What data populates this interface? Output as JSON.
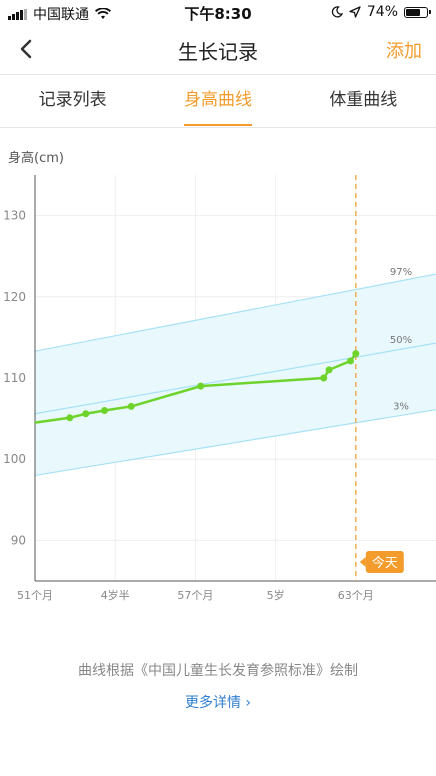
{
  "status_bar": {
    "carrier": "中国联通",
    "time": "下午8:30",
    "battery": "74%",
    "battery_level": 0.74
  },
  "navbar": {
    "title": "生长记录",
    "action": "添加",
    "back_icon": "chevron-left-icon"
  },
  "tabs": [
    {
      "label": "记录列表",
      "active": false
    },
    {
      "label": "身高曲线",
      "active": true
    },
    {
      "label": "体重曲线",
      "active": false
    }
  ],
  "colors": {
    "accent": "#f39c2b",
    "curve": "#6ed42c",
    "band_fill": "#e8f8fd",
    "band_line": "#a7e1f5",
    "link": "#2f7fd0"
  },
  "chart_data": {
    "type": "line",
    "ylabel": "身高(cm)",
    "x_ticks": [
      {
        "label": "51个月",
        "months": 51
      },
      {
        "label": "4岁半",
        "months": 54
      },
      {
        "label": "57个月",
        "months": 57
      },
      {
        "label": "5岁",
        "months": 60
      },
      {
        "label": "63个月",
        "months": 63
      }
    ],
    "xlim": [
      51,
      66
    ],
    "ylim": [
      85,
      135
    ],
    "y_ticks": [
      90,
      100,
      110,
      120,
      130
    ],
    "grid": true,
    "percentiles": [
      {
        "name": "97%",
        "values_at_xlim": [
          113.3,
          122.8
        ]
      },
      {
        "name": "50%",
        "values_at_xlim": [
          105.6,
          114.3
        ]
      },
      {
        "name": "3%",
        "values_at_xlim": [
          98.0,
          106.1
        ]
      }
    ],
    "series": [
      {
        "x": [
          51,
          52.3,
          52.9,
          53.6,
          54.6,
          57.2,
          61.8,
          62.0,
          62.8,
          63.0
        ],
        "y": [
          104.5,
          105.1,
          105.6,
          106.0,
          106.5,
          109.0,
          110.0,
          111.0,
          112.1,
          113.0
        ]
      }
    ],
    "today_marker": {
      "label": "今天",
      "months": 63
    }
  },
  "footer": {
    "note": "曲线根据《中国儿童生长发育参照标准》绘制",
    "more_link": "更多详情 ›"
  }
}
